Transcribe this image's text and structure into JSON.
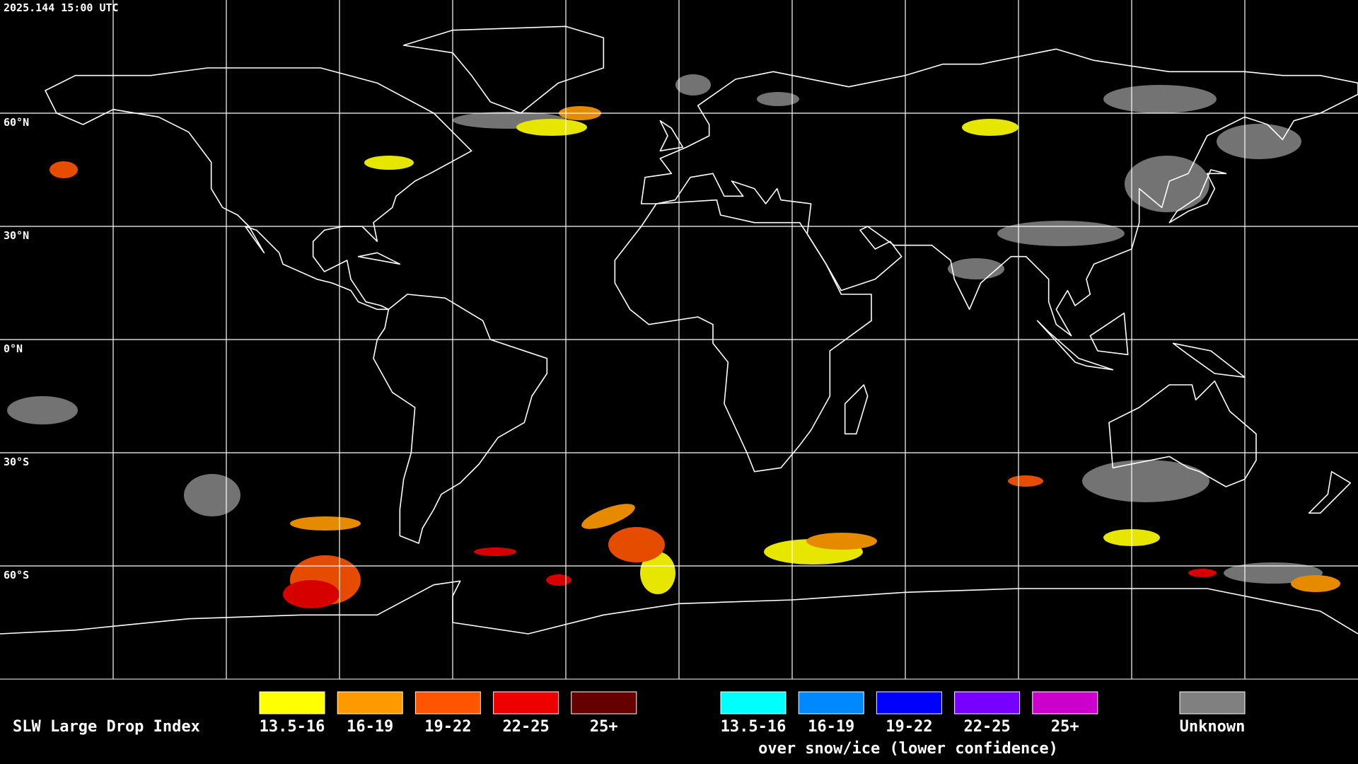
{
  "timestamp": "2025.144 15:00 UTC",
  "latitude_labels": [
    "60°N",
    "30°N",
    "0°N",
    "30°S",
    "60°S"
  ],
  "legend": {
    "title": "SLW Large Drop Index",
    "items": [
      {
        "label": "13.5-16",
        "color": "#ffff00"
      },
      {
        "label": "16-19",
        "color": "#ff9900"
      },
      {
        "label": "19-22",
        "color": "#ff5500"
      },
      {
        "label": "22-25",
        "color": "#ee0000"
      },
      {
        "label": "25+",
        "color": "#660000"
      }
    ],
    "snow_ice_items": [
      {
        "label": "13.5-16",
        "color": "#00ffff"
      },
      {
        "label": "16-19",
        "color": "#0088ff"
      },
      {
        "label": "19-22",
        "color": "#0000ff"
      },
      {
        "label": "22-25",
        "color": "#7700ff"
      },
      {
        "label": "25+",
        "color": "#cc00cc"
      }
    ],
    "snow_ice_caption": "over snow/ice (lower confidence)",
    "unknown": {
      "label": "Unknown",
      "color": "#808080"
    }
  }
}
